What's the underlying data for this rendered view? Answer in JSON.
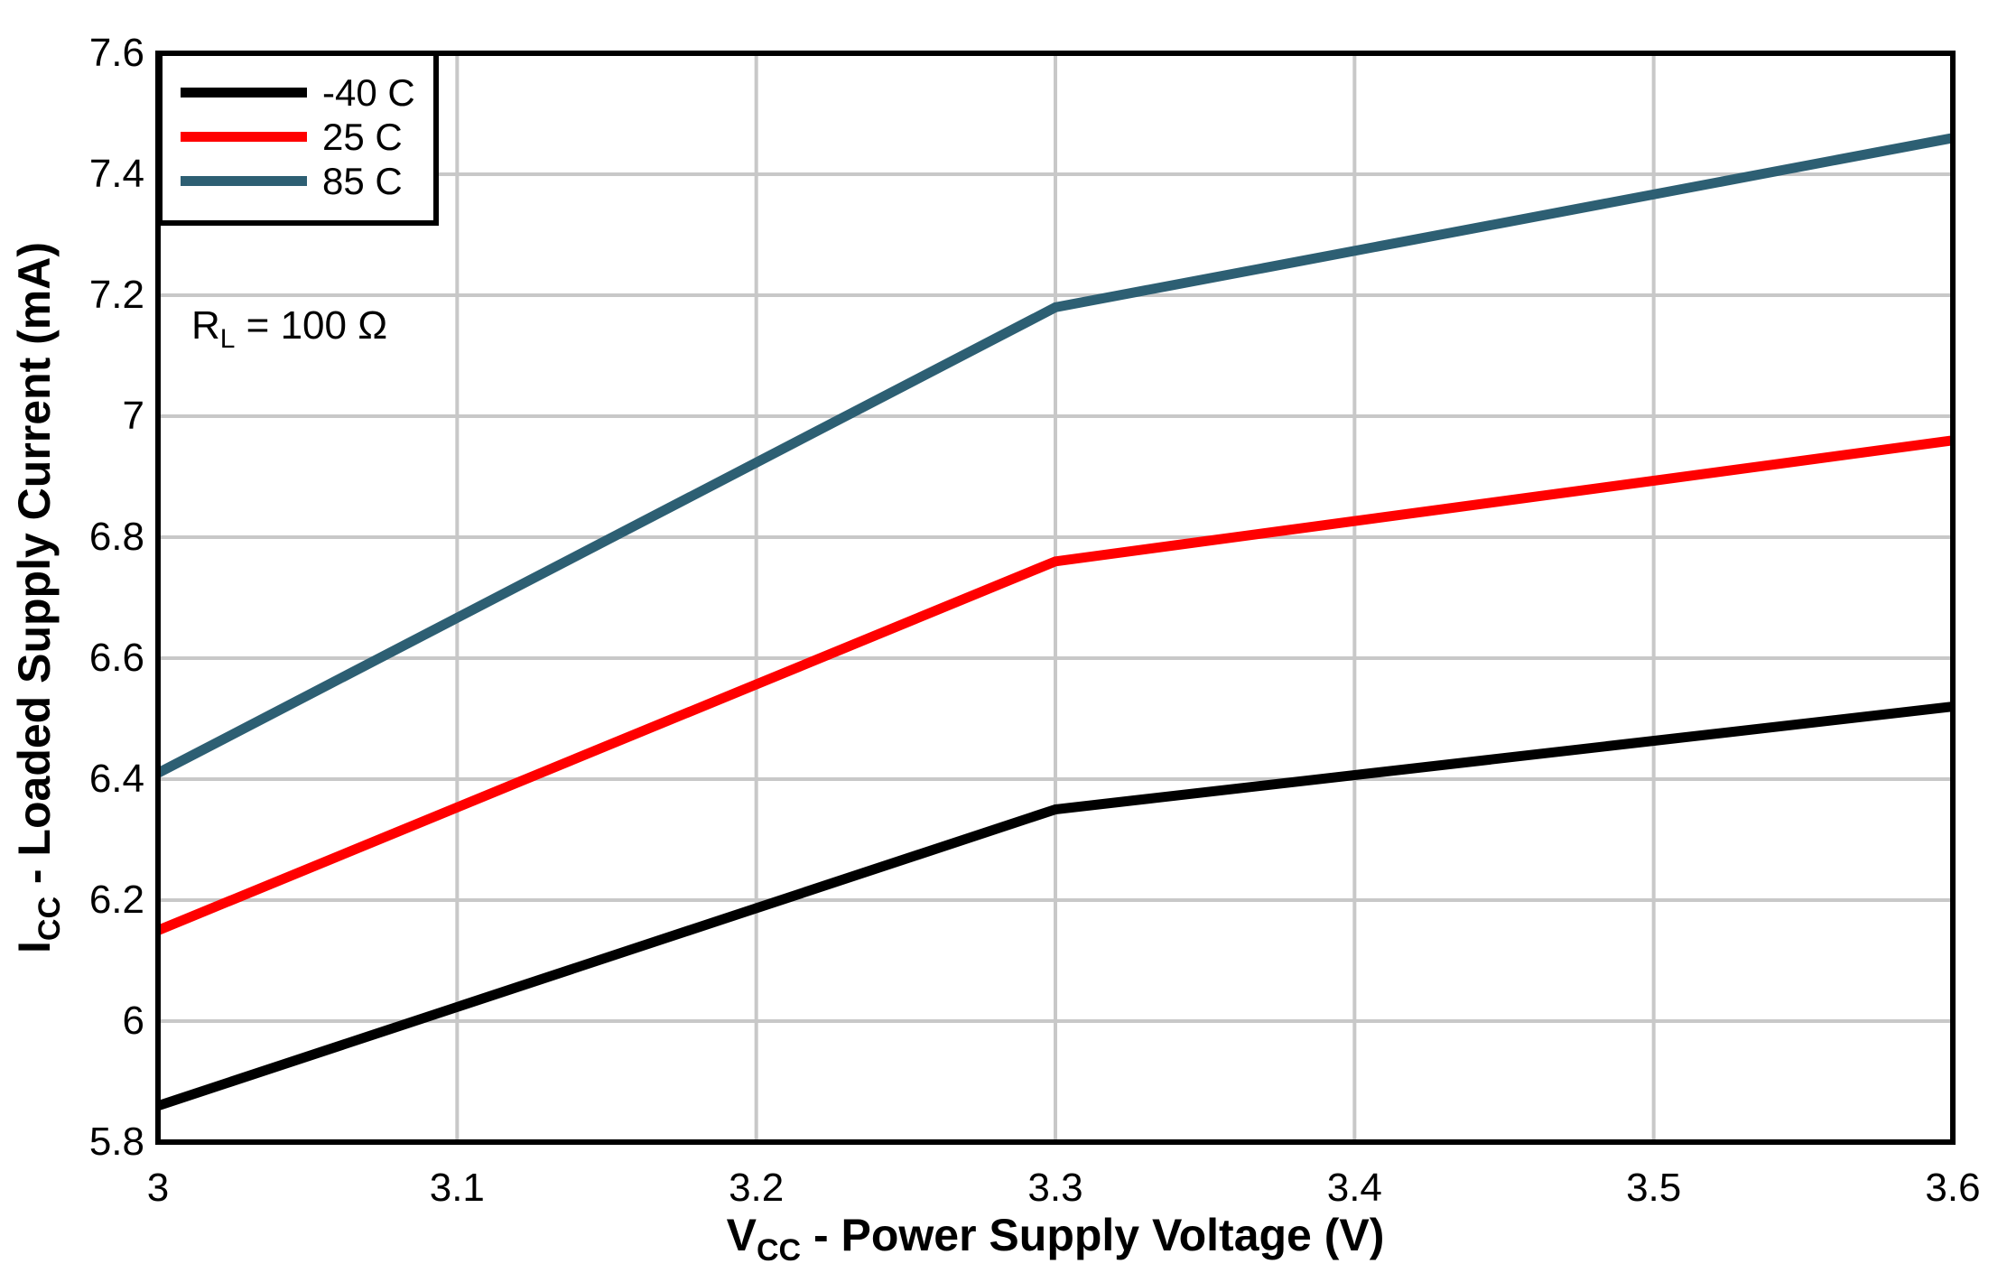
{
  "chart_data": {
    "type": "line",
    "title": "",
    "xlabel": "VCC - Power Supply Voltage (V)",
    "ylabel": "ICC - Loaded Supply Current (mA)",
    "xlim": [
      3.0,
      3.6
    ],
    "ylim": [
      5.8,
      7.6
    ],
    "grid": true,
    "legend_position": "top-left",
    "xticks": {
      "values": [
        3.0,
        3.1,
        3.2,
        3.3,
        3.4,
        3.5,
        3.6
      ],
      "labels": [
        "3",
        "3.1",
        "3.2",
        "3.3",
        "3.4",
        "3.5",
        "3.6"
      ]
    },
    "yticks": {
      "values": [
        5.8,
        6.0,
        6.2,
        6.4,
        6.6,
        6.8,
        7.0,
        7.2,
        7.4,
        7.6
      ],
      "labels": [
        "5.8",
        "6",
        "6.2",
        "6.4",
        "6.6",
        "6.8",
        "7",
        "7.2",
        "7.4",
        "7.6"
      ]
    },
    "series": [
      {
        "id": "minus-40c",
        "name": "-40 C",
        "color": "#000000",
        "x": [
          3.0,
          3.3,
          3.6
        ],
        "y": [
          5.86,
          6.35,
          6.52
        ]
      },
      {
        "id": "25c",
        "name": "25 C",
        "color": "#FF0000",
        "x": [
          3.0,
          3.3,
          3.6
        ],
        "y": [
          6.15,
          6.76,
          6.96
        ]
      },
      {
        "id": "85c",
        "name": "85 C",
        "color": "#2D5F73",
        "x": [
          3.0,
          3.3,
          3.6
        ],
        "y": [
          6.41,
          7.18,
          7.46
        ]
      }
    ],
    "colors": {
      "grid": "#C8C8C8",
      "axis": "#000000",
      "background": "#FFFFFF"
    }
  },
  "axes": {
    "y_title": {
      "prefix": "I",
      "sub": "CC",
      "rest": " - Loaded Supply Current (mA)"
    },
    "x_title": {
      "prefix": "V",
      "sub": "CC",
      "rest": " - Power Supply Voltage (V)"
    }
  },
  "annotation": {
    "prefix": "R",
    "sub": "L",
    "rest": " = 100 Ω"
  }
}
